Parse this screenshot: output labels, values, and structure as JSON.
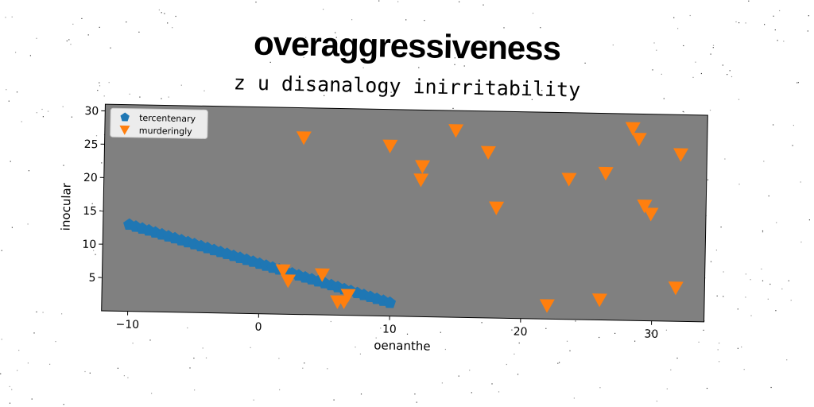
{
  "chart_data": {
    "type": "scatter",
    "title": "overaggressiveness",
    "subtitle": "z u disanalogy inirritability",
    "xlabel": "oenanthe",
    "ylabel": "inocular",
    "xlim": [
      -12,
      34
    ],
    "ylim": [
      0,
      31
    ],
    "xticks": [
      -10,
      0,
      10,
      20,
      30
    ],
    "yticks": [
      5,
      10,
      15,
      20,
      25,
      30
    ],
    "xtick_labels": [
      "−10",
      "0",
      "10",
      "20",
      "30"
    ],
    "ytick_labels": [
      "5",
      "10",
      "15",
      "20",
      "25",
      "30"
    ],
    "background": "#808080",
    "grid": false,
    "legend_position": "top-left",
    "series": [
      {
        "name": "tercentenary",
        "marker": "pentagon",
        "color": "#1f77b4",
        "x": [
          -10.0,
          -9.5,
          -9.0,
          -8.5,
          -8.0,
          -7.5,
          -7.0,
          -6.5,
          -6.0,
          -5.5,
          -5.0,
          -4.5,
          -4.0,
          -3.5,
          -3.0,
          -2.5,
          -2.0,
          -1.5,
          -1.0,
          -0.5,
          0.0,
          0.5,
          1.0,
          1.5,
          2.0,
          2.5,
          3.0,
          3.5,
          4.0,
          4.5,
          5.0,
          5.5,
          6.0,
          6.5,
          7.0,
          7.5,
          8.0,
          8.5,
          9.0,
          9.5,
          10.0
        ],
        "y": [
          13.0,
          12.72,
          12.45,
          12.18,
          11.9,
          11.62,
          11.35,
          11.08,
          10.8,
          10.53,
          10.25,
          9.97,
          9.7,
          9.42,
          9.15,
          8.88,
          8.6,
          8.32,
          8.05,
          7.78,
          7.5,
          7.22,
          6.95,
          6.68,
          6.4,
          6.13,
          5.85,
          5.57,
          5.3,
          5.02,
          4.75,
          4.48,
          4.2,
          3.92,
          3.65,
          3.38,
          3.1,
          2.83,
          2.55,
          2.28,
          2.0
        ]
      },
      {
        "name": "murderingly",
        "marker": "triangle-down",
        "color": "#ff7f0e",
        "x": [
          3.2,
          9.8,
          12.3,
          12.2,
          14.8,
          17.3,
          18.0,
          23.5,
          26.3,
          28.3,
          28.8,
          29.3,
          29.8,
          32.0,
          1.8,
          2.2,
          4.8,
          6.0,
          6.5,
          6.8,
          22.0,
          26.0,
          31.8
        ],
        "y": [
          26.5,
          25.5,
          22.5,
          20.5,
          28.0,
          24.8,
          16.5,
          21.0,
          22.0,
          28.8,
          27.2,
          17.2,
          16.0,
          25.0,
          6.5,
          5.0,
          6.0,
          2.0,
          2.0,
          3.0,
          2.0,
          3.0,
          5.0
        ]
      }
    ]
  }
}
